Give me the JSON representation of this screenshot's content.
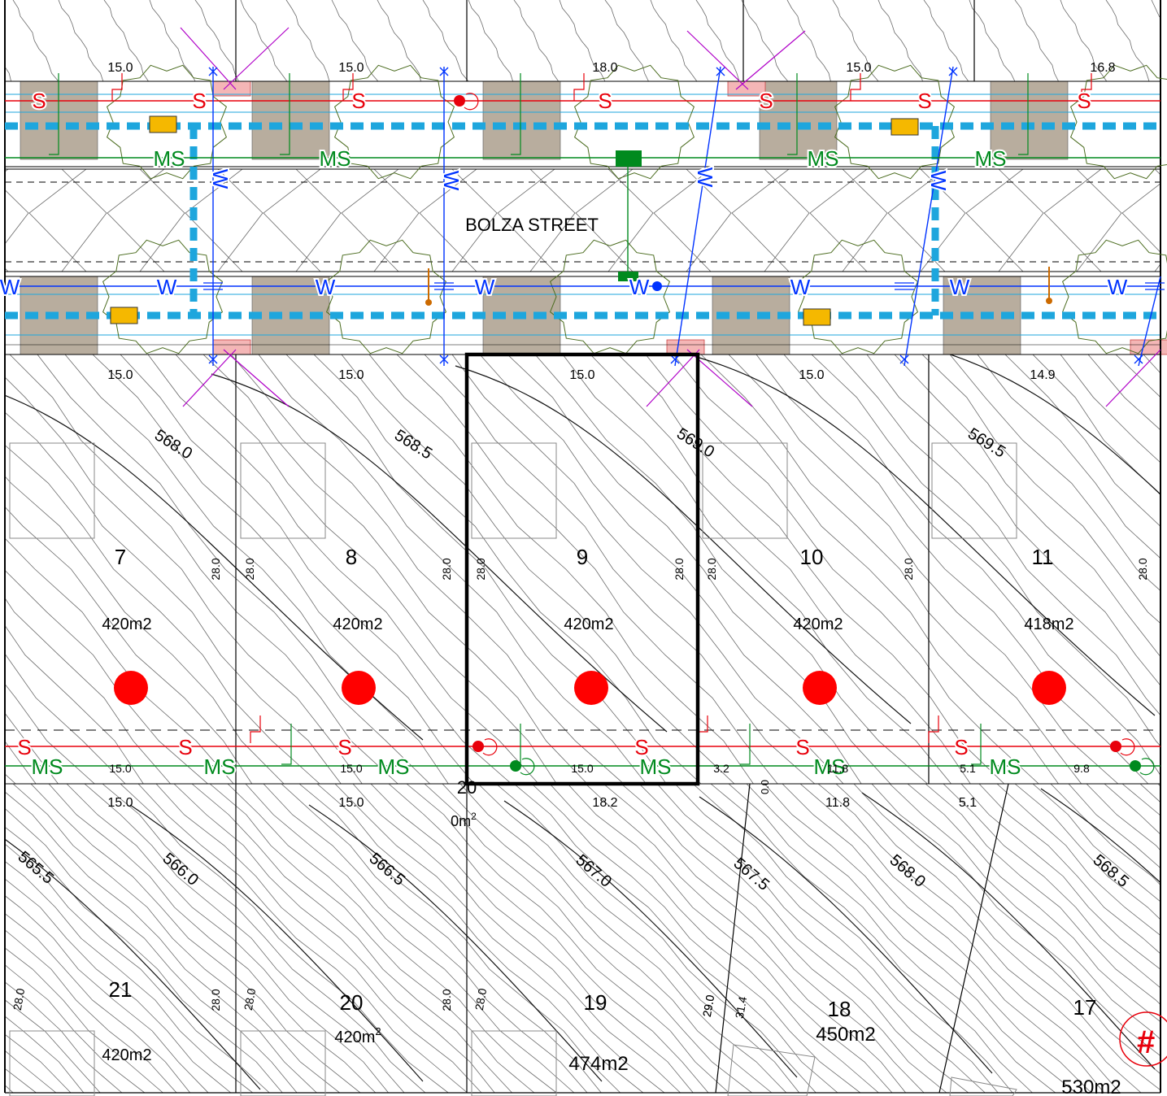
{
  "street_name": "BOLZA STREET",
  "utility_letters": {
    "sewer": "S",
    "water": "W",
    "stormwater": "MS"
  },
  "colors": {
    "sewer": "#e8000b",
    "water": "#0033ff",
    "stormwater": "#008a1e",
    "telecom": "#1ea6dd",
    "driveway": "#b8ad9e",
    "pit": "#f5b800",
    "tree": "#4a6b1e",
    "selected_lot": "#000000",
    "lot_marker": "#ff0000",
    "purple": "#b000c8",
    "hydrant": "#cc6a00"
  },
  "top_frontages": [
    "15.0",
    "15.0",
    "18.0",
    "15.0",
    "16.8"
  ],
  "lower_frontages": [
    "15.0",
    "15.0",
    "15.0",
    "15.0",
    "14.9"
  ],
  "lots_north": [
    {
      "number": "7",
      "area": "420m2",
      "depth_left": "",
      "depth_right": "28.0"
    },
    {
      "number": "8",
      "area": "420m2",
      "depth_left": "28.0",
      "depth_right": "28.0"
    },
    {
      "number": "9",
      "area": "420m2",
      "depth_left": "28.0",
      "depth_right": "28.0"
    },
    {
      "number": "10",
      "area": "420m2",
      "depth_left": "28.0",
      "depth_right": "28.0"
    },
    {
      "number": "11",
      "area": "418m2",
      "depth_left": "",
      "depth_right": "28.0"
    }
  ],
  "rear_dims_north": [
    "15.0",
    "15.0",
    "15.0",
    "3.2",
    "11.8",
    "5.1",
    "9.8"
  ],
  "front_dims_south": [
    "15.0",
    "15.0",
    "18.2",
    "11.8",
    "5.1"
  ],
  "small_dim": "0.0",
  "lot_20_overlap": {
    "number": "20",
    "area": "0m",
    "sup": "2"
  },
  "lots_south": [
    {
      "number": "21",
      "area": "420m2",
      "area_sup": "",
      "depth_left": "28.0",
      "depth_right": "28.0"
    },
    {
      "number": "20",
      "area": "420m",
      "area_sup": "2",
      "depth_left": "28.0",
      "depth_right": "28.0"
    },
    {
      "number": "19",
      "area": "474m2",
      "area_sup": "",
      "depth_left": "28.0",
      "depth_right": "29.0"
    },
    {
      "number": "18",
      "area": "450m2",
      "area_sup": "",
      "depth_left": "29.0",
      "depth_right": "31.4"
    },
    {
      "number": "17",
      "area": "530m2",
      "area_sup": "",
      "depth_left": "",
      "depth_right": ""
    }
  ],
  "contours_north": [
    "568.0",
    "568.5",
    "569.0",
    "569.5"
  ],
  "contours_south": [
    "565.5",
    "566.0",
    "566.5",
    "567.0",
    "567.5",
    "568.0",
    "568.5"
  ],
  "marker_symbol": "#"
}
